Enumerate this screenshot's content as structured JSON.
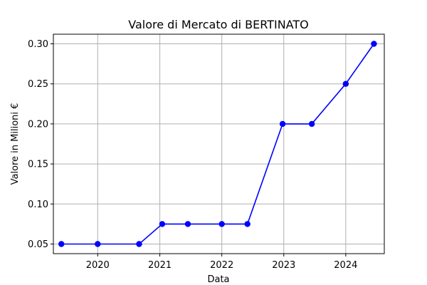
{
  "chart_data": {
    "type": "line",
    "title": "Valore di Mercato di BERTINATO",
    "xlabel": "Data",
    "ylabel": "Valore in Milioni €",
    "x": [
      "2019-06-01",
      "2020-01-01",
      "2020-09-01",
      "2021-01-15",
      "2021-06-15",
      "2022-01-01",
      "2022-06-01",
      "2022-12-25",
      "2023-06-15",
      "2024-01-01",
      "2024-06-15"
    ],
    "series": [
      {
        "values": [
          0.05,
          0.05,
          0.05,
          0.075,
          0.075,
          0.075,
          0.075,
          0.2,
          0.2,
          0.25,
          0.3
        ]
      }
    ],
    "xlim": [
      "2019-04-15",
      "2024-08-15"
    ],
    "ylim": [
      0.038,
      0.312
    ],
    "x_ticks": [
      "2020",
      "2021",
      "2022",
      "2023",
      "2024"
    ],
    "x_tick_dates": [
      "2020-01-01",
      "2021-01-01",
      "2022-01-01",
      "2023-01-01",
      "2024-01-01"
    ],
    "y_ticks": [
      0.05,
      0.1,
      0.15,
      0.2,
      0.25,
      0.3
    ],
    "y_tick_labels": [
      "0.05",
      "0.10",
      "0.15",
      "0.20",
      "0.25",
      "0.30"
    ],
    "grid": true,
    "line_color": "#0000ff",
    "marker": "circle"
  }
}
